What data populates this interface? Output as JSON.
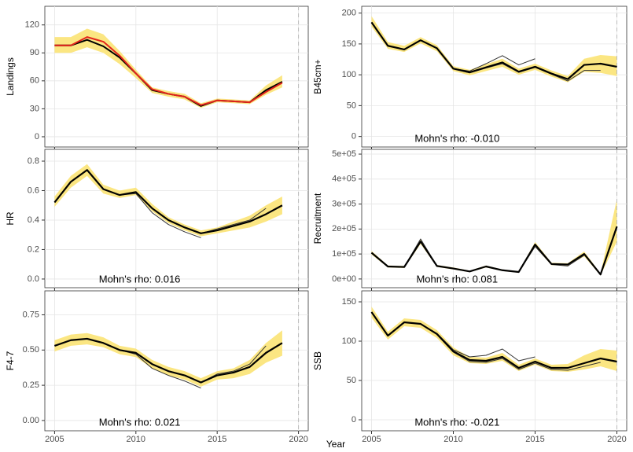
{
  "xlabel": "Year",
  "chart_data": [
    {
      "type": "line",
      "ylabel": "Landings",
      "x": [
        2005,
        2006,
        2007,
        2008,
        2009,
        2010,
        2011,
        2012,
        2013,
        2014,
        2015,
        2016,
        2017,
        2018,
        2019
      ],
      "xlim": [
        2004.4,
        2020.6
      ],
      "xticks": [
        2005,
        2010,
        2015,
        2020
      ],
      "xtick_labels": false,
      "vline": 2020,
      "ylim": [
        -11,
        140
      ],
      "yticks": [
        0,
        30,
        60,
        90,
        120
      ],
      "grid": true,
      "band": {
        "color": "#fbe682",
        "lower": [
          90,
          90,
          96,
          90,
          78,
          63,
          47,
          43,
          40,
          31,
          37,
          36,
          35,
          45,
          53
        ],
        "upper": [
          107,
          107,
          116,
          110,
          92,
          72,
          53,
          49,
          46,
          36,
          41,
          40,
          39,
          55,
          66
        ]
      },
      "series": [
        {
          "color": "#000000",
          "linewidth": 2,
          "values": [
            98,
            98,
            104,
            97,
            85,
            68,
            50,
            46,
            43,
            33,
            39,
            38,
            37,
            50,
            59
          ]
        },
        {
          "color": "#e3231b",
          "linewidth": 2,
          "values": [
            98,
            98,
            107,
            102,
            87,
            68,
            51,
            46,
            43,
            34,
            39,
            38,
            37,
            48,
            58
          ]
        }
      ]
    },
    {
      "type": "line",
      "ylabel": "B45cm+",
      "annotation": "Mohn's rho: -0.010",
      "x": [
        2005,
        2006,
        2007,
        2008,
        2009,
        2010,
        2011,
        2012,
        2013,
        2014,
        2015,
        2016,
        2017,
        2018,
        2019,
        2020
      ],
      "xlim": [
        2004.4,
        2020.6
      ],
      "xticks": [
        2005,
        2010,
        2015,
        2020
      ],
      "xtick_labels": false,
      "vline": 2020,
      "ylim": [
        -17,
        211
      ],
      "yticks": [
        0,
        50,
        100,
        150,
        200
      ],
      "grid": true,
      "band": {
        "color": "#fbe682",
        "lower": [
          178,
          142,
          137,
          151,
          138,
          106,
          99,
          106,
          113,
          100,
          108,
          97,
          88,
          105,
          103,
          98
        ],
        "upper": [
          195,
          153,
          147,
          161,
          148,
          114,
          108,
          117,
          126,
          110,
          118,
          107,
          98,
          126,
          132,
          130
        ]
      },
      "series": [
        {
          "color": "#333333",
          "linewidth": 1,
          "values": [
            184,
            147,
            141,
            156,
            143,
            110,
            106,
            118,
            131,
            116,
            126,
            null,
            null,
            null,
            null,
            null
          ]
        },
        {
          "color": "#333333",
          "linewidth": 1,
          "values": [
            185,
            147,
            141,
            156,
            143,
            110,
            103,
            111,
            118,
            104,
            112,
            101,
            90,
            107,
            107,
            null
          ]
        },
        {
          "color": "#000000",
          "linewidth": 2.2,
          "values": [
            185,
            147,
            141,
            156,
            143,
            110,
            104,
            112,
            120,
            105,
            113,
            102,
            93,
            116,
            118,
            113
          ]
        }
      ]
    },
    {
      "type": "line",
      "ylabel": "HR",
      "annotation": "Mohn's rho: 0.016",
      "x": [
        2005,
        2006,
        2007,
        2008,
        2009,
        2010,
        2011,
        2012,
        2013,
        2014,
        2015,
        2016,
        2017,
        2018,
        2019
      ],
      "xlim": [
        2004.4,
        2020.6
      ],
      "xticks": [
        2005,
        2010,
        2015,
        2020
      ],
      "xtick_labels": false,
      "vline": 2020,
      "ylim": [
        -0.059,
        0.88
      ],
      "yticks": [
        {
          "value": 0,
          "label": "0.0"
        },
        0.2,
        0.4,
        0.6,
        0.8
      ],
      "grid": true,
      "band": {
        "color": "#fbe682",
        "lower": [
          0.49,
          0.62,
          0.7,
          0.58,
          0.55,
          0.57,
          0.46,
          0.38,
          0.33,
          0.29,
          0.31,
          0.33,
          0.35,
          0.39,
          0.44
        ],
        "upper": [
          0.56,
          0.7,
          0.78,
          0.64,
          0.6,
          0.62,
          0.51,
          0.42,
          0.37,
          0.33,
          0.35,
          0.39,
          0.43,
          0.5,
          0.56
        ]
      },
      "series": [
        {
          "color": "#333333",
          "linewidth": 1,
          "values": [
            0.52,
            0.66,
            0.74,
            0.61,
            0.57,
            0.58,
            0.45,
            0.37,
            0.32,
            0.28,
            null,
            null,
            null,
            null,
            null
          ]
        },
        {
          "color": "#333333",
          "linewidth": 1,
          "values": [
            0.52,
            0.66,
            0.74,
            0.61,
            0.57,
            0.59,
            0.48,
            0.4,
            0.35,
            0.31,
            0.34,
            0.37,
            0.4,
            0.48,
            null
          ]
        },
        {
          "color": "#000000",
          "linewidth": 2.2,
          "values": [
            0.52,
            0.66,
            0.74,
            0.61,
            0.57,
            0.59,
            0.48,
            0.4,
            0.35,
            0.31,
            0.33,
            0.36,
            0.39,
            0.44,
            0.5
          ]
        }
      ]
    },
    {
      "type": "line",
      "ylabel": "Recruitment",
      "annotation": "Mohn's rho: 0.081",
      "x": [
        2005,
        2006,
        2007,
        2008,
        2009,
        2010,
        2011,
        2012,
        2013,
        2014,
        2015,
        2016,
        2017,
        2018,
        2019,
        2020
      ],
      "xlim": [
        2004.4,
        2020.6
      ],
      "xticks": [
        2005,
        2010,
        2015,
        2020
      ],
      "xtick_labels": false,
      "vline": 2020,
      "ylim": [
        -35000,
        519000
      ],
      "yticks": [
        {
          "value": 0,
          "label": "0e+00"
        },
        {
          "value": 100000,
          "label": "1e+05"
        },
        {
          "value": 200000,
          "label": "2e+05"
        },
        {
          "value": 300000,
          "label": "3e+05"
        },
        {
          "value": 400000,
          "label": "4e+05"
        },
        {
          "value": 500000,
          "label": "5e+05"
        }
      ],
      "grid": true,
      "band": {
        "color": "#fbe682",
        "lower": [
          98000,
          46000,
          44000,
          140000,
          48000,
          38000,
          27000,
          46000,
          32000,
          25000,
          128000,
          55000,
          53000,
          90000,
          14000,
          150000
        ],
        "upper": [
          112000,
          54000,
          52000,
          160000,
          56000,
          46000,
          33000,
          54000,
          38000,
          31000,
          148000,
          65000,
          63000,
          110000,
          22000,
          320000
        ]
      },
      "series": [
        {
          "color": "#333333",
          "linewidth": 1,
          "values": [
            105000,
            50000,
            48000,
            160000,
            52000,
            42000,
            30000,
            50000,
            35000,
            28000,
            130000,
            58000,
            52000,
            95000,
            null,
            null
          ]
        },
        {
          "color": "#000000",
          "linewidth": 2.2,
          "values": [
            105000,
            50000,
            48000,
            150000,
            52000,
            42000,
            30000,
            50000,
            35000,
            28000,
            138000,
            60000,
            58000,
            100000,
            18000,
            210000
          ]
        }
      ]
    },
    {
      "type": "line",
      "ylabel": "F4-7",
      "annotation": "Mohn's rho: 0.021",
      "x": [
        2005,
        2006,
        2007,
        2008,
        2009,
        2010,
        2011,
        2012,
        2013,
        2014,
        2015,
        2016,
        2017,
        2018,
        2019
      ],
      "xlim": [
        2004.4,
        2020.6
      ],
      "xticks": [
        2005,
        2010,
        2015,
        2020
      ],
      "xtick_labels": true,
      "vline": 2020,
      "ylim": [
        -0.073,
        0.92
      ],
      "yticks": [
        {
          "value": 0,
          "label": "0.00"
        },
        0.25,
        {
          "value": 0.5,
          "label": "0.50"
        },
        0.75
      ],
      "grid": true,
      "band": {
        "color": "#fbe682",
        "lower": [
          0.49,
          0.53,
          0.54,
          0.52,
          0.47,
          0.45,
          0.37,
          0.32,
          0.29,
          0.24,
          0.29,
          0.3,
          0.33,
          0.41,
          0.46
        ],
        "upper": [
          0.57,
          0.61,
          0.62,
          0.59,
          0.53,
          0.51,
          0.43,
          0.38,
          0.35,
          0.3,
          0.35,
          0.37,
          0.43,
          0.55,
          0.64
        ]
      },
      "series": [
        {
          "color": "#333333",
          "linewidth": 1,
          "values": [
            0.53,
            0.57,
            0.58,
            0.55,
            0.5,
            0.47,
            0.37,
            0.32,
            0.28,
            0.23,
            null,
            null,
            null,
            null,
            null
          ]
        },
        {
          "color": "#333333",
          "linewidth": 1,
          "values": [
            0.53,
            0.57,
            0.58,
            0.55,
            0.5,
            0.48,
            0.4,
            0.35,
            0.32,
            0.27,
            0.33,
            0.35,
            0.4,
            0.53,
            null
          ]
        },
        {
          "color": "#000000",
          "linewidth": 2.2,
          "values": [
            0.53,
            0.57,
            0.58,
            0.55,
            0.5,
            0.48,
            0.4,
            0.35,
            0.32,
            0.27,
            0.32,
            0.34,
            0.38,
            0.48,
            0.55
          ]
        }
      ]
    },
    {
      "type": "line",
      "ylabel": "SSB",
      "annotation": "Mohn's rho: -0.021",
      "x": [
        2005,
        2006,
        2007,
        2008,
        2009,
        2010,
        2011,
        2012,
        2013,
        2014,
        2015,
        2016,
        2017,
        2018,
        2019,
        2020
      ],
      "xlim": [
        2004.4,
        2020.6
      ],
      "xticks": [
        2005,
        2010,
        2015,
        2020
      ],
      "xtick_labels": true,
      "vline": 2020,
      "ylim": [
        -14,
        164
      ],
      "yticks": [
        0,
        50,
        100,
        150
      ],
      "grid": true,
      "band": {
        "color": "#fbe682",
        "lower": [
          130,
          102,
          119,
          117,
          104,
          82,
          72,
          71,
          75,
          62,
          70,
          62,
          61,
          64,
          68,
          62
        ],
        "upper": [
          144,
          112,
          129,
          127,
          114,
          92,
          80,
          79,
          85,
          70,
          78,
          70,
          71,
          82,
          90,
          88
        ]
      },
      "series": [
        {
          "color": "#333333",
          "linewidth": 1,
          "values": [
            137,
            107,
            124,
            122,
            110,
            89,
            80,
            82,
            90,
            75,
            80,
            null,
            null,
            null,
            null,
            null
          ]
        },
        {
          "color": "#333333",
          "linewidth": 1,
          "values": [
            137,
            107,
            124,
            122,
            109,
            86,
            74,
            73,
            78,
            64,
            72,
            64,
            63,
            68,
            73,
            null
          ]
        },
        {
          "color": "#000000",
          "linewidth": 2.2,
          "values": [
            137,
            107,
            124,
            122,
            109,
            87,
            76,
            75,
            80,
            66,
            74,
            66,
            66,
            72,
            78,
            74
          ]
        }
      ]
    }
  ]
}
